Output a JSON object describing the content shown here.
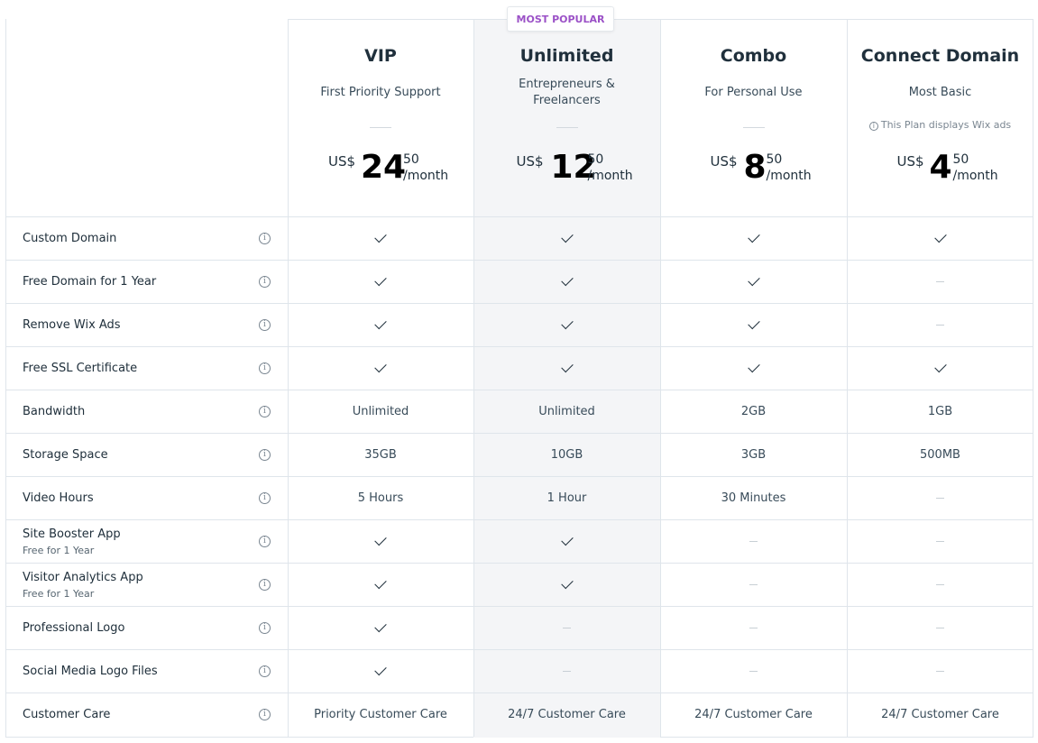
{
  "badge": "MOST POPULAR",
  "plans": [
    {
      "name": "VIP",
      "tagline": "First Priority Support",
      "tagline2": "",
      "currency": "US$",
      "amount": "24",
      "cents": "50",
      "period": "/month",
      "note": ""
    },
    {
      "name": "Unlimited",
      "tagline": "Entrepreneurs &",
      "tagline2": "Freelancers",
      "currency": "US$",
      "amount": "12",
      "cents": "50",
      "period": "/month",
      "note": ""
    },
    {
      "name": "Combo",
      "tagline": "For Personal Use",
      "tagline2": "",
      "currency": "US$",
      "amount": "8",
      "cents": "50",
      "period": "/month",
      "note": ""
    },
    {
      "name": "Connect Domain",
      "tagline": "Most Basic",
      "tagline2": "",
      "currency": "US$",
      "amount": "4",
      "cents": "50",
      "period": "/month",
      "note": "This Plan displays Wix ads"
    }
  ],
  "features": [
    {
      "label": "Custom Domain",
      "sub": "",
      "values": [
        "check",
        "check",
        "check",
        "check"
      ]
    },
    {
      "label": "Free Domain for 1 Year",
      "sub": "",
      "values": [
        "check",
        "check",
        "check",
        "dash"
      ]
    },
    {
      "label": "Remove Wix Ads",
      "sub": "",
      "values": [
        "check",
        "check",
        "check",
        "dash"
      ]
    },
    {
      "label": "Free SSL Certificate",
      "sub": "",
      "values": [
        "check",
        "check",
        "check",
        "check"
      ]
    },
    {
      "label": "Bandwidth",
      "sub": "",
      "values": [
        "Unlimited",
        "Unlimited",
        "2GB",
        "1GB"
      ]
    },
    {
      "label": "Storage Space",
      "sub": "",
      "values": [
        "35GB",
        "10GB",
        "3GB",
        "500MB"
      ]
    },
    {
      "label": "Video Hours",
      "sub": "",
      "values": [
        "5 Hours",
        "1 Hour",
        "30 Minutes",
        "dash"
      ]
    },
    {
      "label": "Site Booster App",
      "sub": "Free for 1 Year",
      "values": [
        "check",
        "check",
        "dash",
        "dash"
      ]
    },
    {
      "label": "Visitor Analytics App",
      "sub": "Free for 1 Year",
      "values": [
        "check",
        "check",
        "dash",
        "dash"
      ]
    },
    {
      "label": "Professional Logo",
      "sub": "",
      "values": [
        "check",
        "dash",
        "dash",
        "dash"
      ]
    },
    {
      "label": "Social Media Logo Files",
      "sub": "",
      "values": [
        "check",
        "dash",
        "dash",
        "dash"
      ]
    },
    {
      "label": "Customer Care",
      "sub": "",
      "values": [
        "Priority Customer Care",
        "24/7 Customer Care",
        "24/7 Customer Care",
        "24/7 Customer Care"
      ]
    }
  ],
  "icons": {
    "info": "info-circle-icon",
    "check": "checkmark-icon",
    "dash": "dash-icon"
  },
  "colors": {
    "badge_text": "#9b51c7",
    "popular_column_bg": "#f4f5f7",
    "border": "#dfe5eb"
  }
}
